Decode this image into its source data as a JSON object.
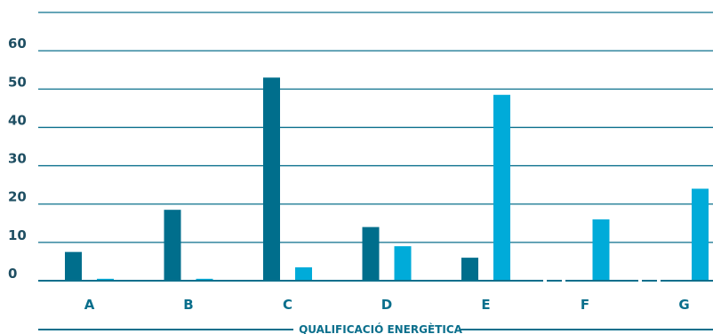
{
  "chart_data": {
    "type": "bar",
    "categories": [
      "A",
      "B",
      "C",
      "D",
      "E",
      "F",
      "G"
    ],
    "series": [
      {
        "values": [
          7.5,
          18.5,
          53,
          14,
          6,
          null,
          null
        ],
        "color": "#006e8c"
      },
      {
        "values": [
          0.5,
          0.5,
          3.5,
          9,
          48.5,
          16,
          24
        ],
        "color": "#00abd9"
      }
    ],
    "title": "",
    "xlabel": "QUALIFICACIÓ ENERGÈTICA",
    "ylabel": "",
    "ylim": [
      0,
      70
    ],
    "yticks": [
      0,
      10,
      20,
      30,
      40,
      50,
      60
    ],
    "grid": true,
    "legend": "none"
  }
}
